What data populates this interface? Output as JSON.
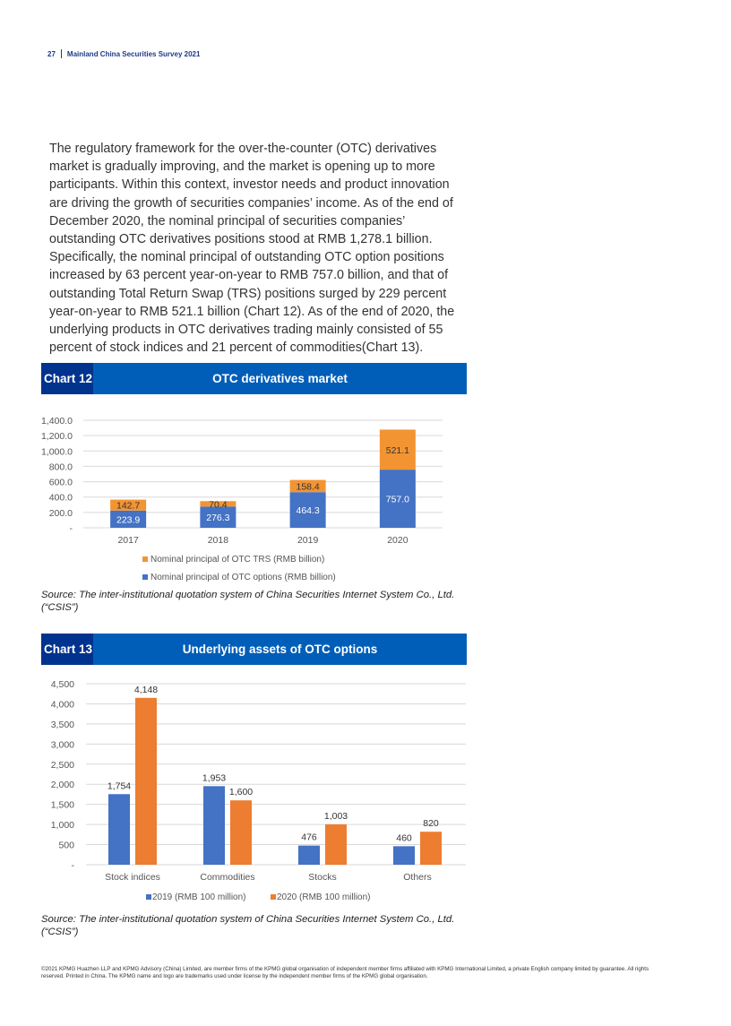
{
  "header": {
    "page_number": "27",
    "publication": "Mainland China Securities Survey 2021"
  },
  "body_text": "The regulatory framework for the over-the-counter (OTC) derivatives market is gradually improving, and the market is opening up to more participants. Within this context, investor needs and product innovation are driving the growth of securities companies’ income. As of the end of December 2020, the nominal principal of securities companies’ outstanding OTC derivatives positions stood at RMB 1,278.1 billion. Specifically, the nominal principal of outstanding OTC option positions increased by 63 percent year-on-year to RMB 757.0 billion, and that of outstanding Total Return Swap (TRS) positions surged by 229 percent year-on-year to RMB 521.1 billion (Chart 12). As of the end of 2020, the underlying products in OTC derivatives trading mainly consisted of 55 percent of stock indices and 21 percent of commodities(Chart 13).",
  "colors": {
    "header_dark": "#00338d",
    "header_blue": "#005eb8",
    "series_blue": "#4472c4",
    "series_orange": "#ed7d31",
    "trs_orange": "#f39433"
  },
  "chart_data": [
    {
      "type": "bar",
      "stacked": true,
      "label": "Chart 12",
      "title": "OTC derivatives market",
      "categories": [
        "2017",
        "2018",
        "2019",
        "2020"
      ],
      "series": [
        {
          "name": "Nominal principal of OTC options (RMB billion)",
          "values": [
            223.9,
            276.3,
            464.3,
            757.0
          ],
          "labels": [
            "223.9",
            "276.3",
            "464.3",
            "757.0"
          ]
        },
        {
          "name": "Nominal principal of OTC TRS (RMB billion)",
          "values": [
            142.7,
            70.4,
            158.4,
            521.1
          ],
          "labels": [
            "142.7",
            "70.4",
            "158.4",
            "521.1"
          ]
        }
      ],
      "yticks": [
        "-",
        "200.0",
        "400.0",
        "600.0",
        "800.0",
        "1,000.0",
        "1,200.0",
        "1,400.0"
      ],
      "ylim": [
        0,
        1400
      ],
      "grid": true,
      "legend": "bottom",
      "legend_order": [
        "Nominal principal of OTC TRS (RMB billion)",
        "Nominal principal of OTC options (RMB billion)"
      ],
      "source": "Source: The inter-institutional quotation system of China Securities Internet System Co., Ltd. (“CSIS”)"
    },
    {
      "type": "bar",
      "stacked": false,
      "label": "Chart 13",
      "title": "Underlying assets of OTC options",
      "categories": [
        "Stock indices",
        "Commodities",
        "Stocks",
        "Others"
      ],
      "series": [
        {
          "name": "2019 (RMB 100 million)",
          "values": [
            1754,
            1953,
            476,
            460
          ],
          "labels": [
            "1,754",
            "1,953",
            "476",
            "460"
          ]
        },
        {
          "name": "2020 (RMB 100 million)",
          "values": [
            4148,
            1600,
            1003,
            820
          ],
          "labels": [
            "4,148",
            "1,600",
            "1,003",
            "820"
          ]
        }
      ],
      "yticks": [
        "-",
        "500",
        "1,000",
        "1,500",
        "2,000",
        "2,500",
        "3,000",
        "3,500",
        "4,000",
        "4,500"
      ],
      "ylim": [
        0,
        4500
      ],
      "grid": true,
      "legend": "bottom",
      "source": "Source: The inter-institutional quotation system of China Securities Internet System Co., Ltd. (“CSIS”)"
    }
  ],
  "footer": "©2021 KPMG Huazhen LLP and KPMG Advisory (China) Limited, are member firms of the KPMG global organisation of independent member firms affiliated with KPMG International Limited, a private English company limited by guarantee. All rights reserved. Printed in China. The KPMG name and logo are trademarks used under license by the independent member firms of the KPMG global organisation."
}
